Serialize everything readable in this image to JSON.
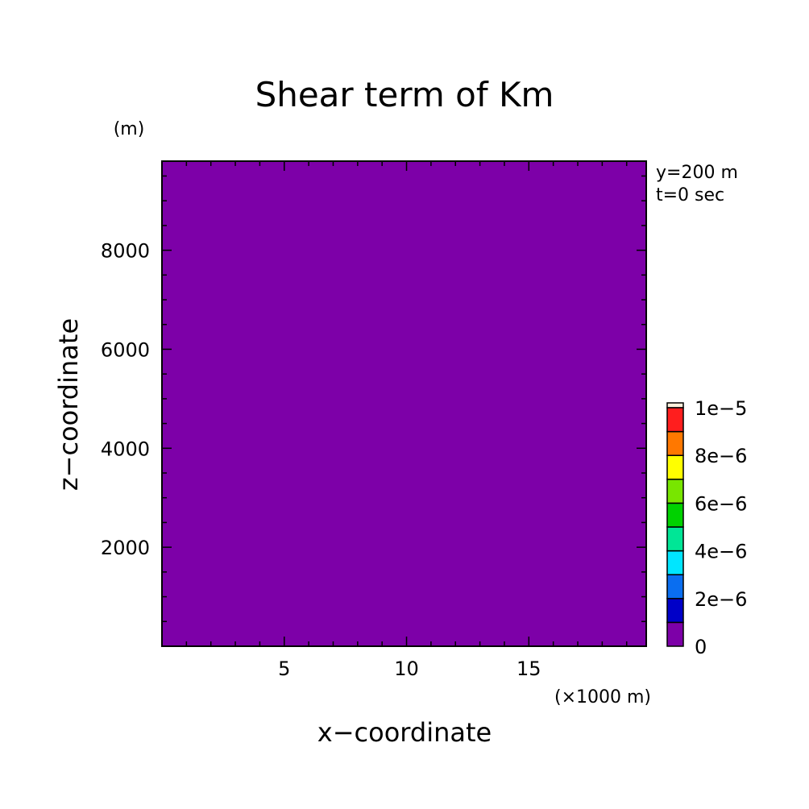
{
  "chart_data": {
    "type": "heatmap",
    "title": "Shear term of Km",
    "xlabel": "x−coordinate",
    "ylabel": "z−coordinate",
    "x_unit": "(×1000 m)",
    "y_unit": "(m)",
    "annotations": [
      "y=200 m",
      "t=0 sec"
    ],
    "xlim": [
      0,
      19.8
    ],
    "ylim": [
      0,
      9800
    ],
    "x_ticks": [
      5,
      10,
      15
    ],
    "x_tick_labels": [
      "5",
      "10",
      "15"
    ],
    "y_ticks": [
      2000,
      4000,
      6000,
      8000
    ],
    "y_tick_labels": [
      "2000",
      "4000",
      "6000",
      "8000"
    ],
    "field": {
      "description_value": 0,
      "uniform": true,
      "fill_color": "#7d00a8"
    },
    "colorbar": {
      "levels": [
        0,
        1e-06,
        2e-06,
        3e-06,
        4e-06,
        5e-06,
        6e-06,
        7e-06,
        8e-06,
        9e-06,
        1e-05
      ],
      "colors": [
        "#7d00a8",
        "#0000c8",
        "#0a6ef0",
        "#00e6ff",
        "#00e696",
        "#00d200",
        "#78e600",
        "#ffff00",
        "#ff7800",
        "#ff1e1e"
      ],
      "top_cap_color": "#fff0dc",
      "labels": [
        {
          "value": 0,
          "text": "0"
        },
        {
          "value": 2e-06,
          "text": "2e−6"
        },
        {
          "value": 4e-06,
          "text": "4e−6"
        },
        {
          "value": 6e-06,
          "text": "6e−6"
        },
        {
          "value": 8e-06,
          "text": "8e−6"
        },
        {
          "value": 1e-05,
          "text": "1e−5"
        }
      ]
    }
  }
}
